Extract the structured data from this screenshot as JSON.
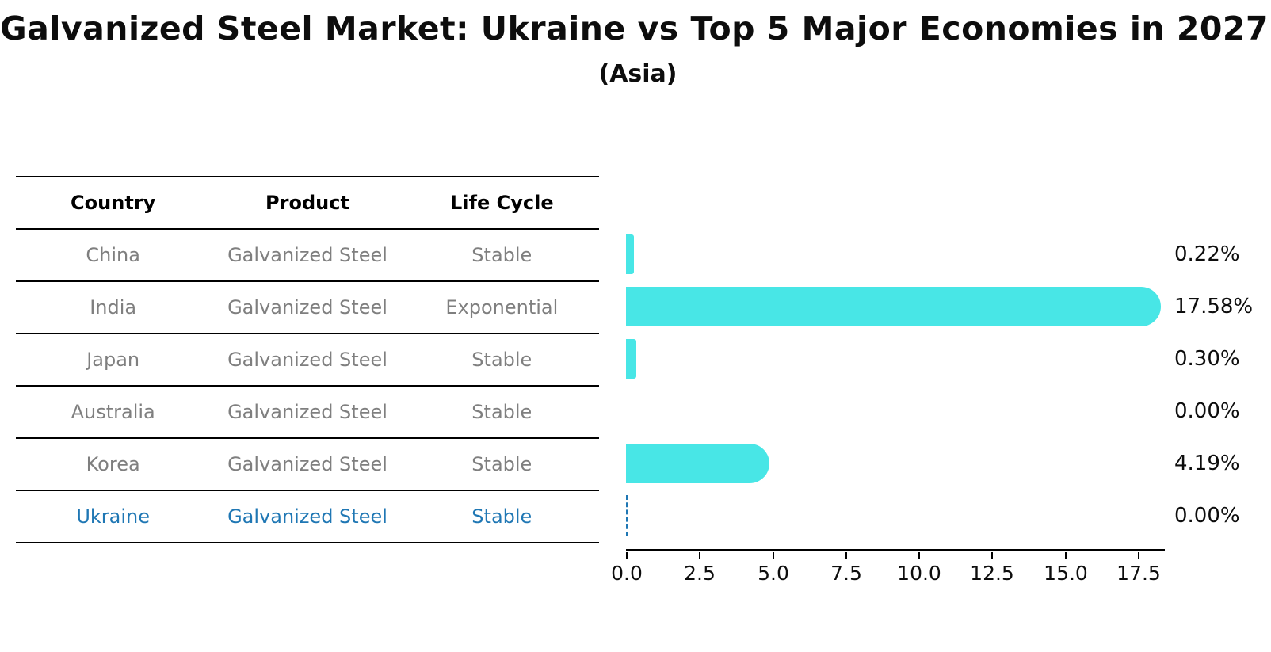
{
  "title": "Galvanized Steel Market: Ukraine vs Top 5 Major Economies in 2027",
  "subtitle": "(Asia)",
  "table": {
    "columns": [
      "Country",
      "Product",
      "Life Cycle"
    ],
    "rows": [
      {
        "country": "China",
        "product": "Galvanized Steel",
        "life_cycle": "Stable",
        "highlight": false
      },
      {
        "country": "India",
        "product": "Galvanized Steel",
        "life_cycle": "Exponential",
        "highlight": false
      },
      {
        "country": "Japan",
        "product": "Galvanized Steel",
        "life_cycle": "Stable",
        "highlight": false
      },
      {
        "country": "Australia",
        "product": "Galvanized Steel",
        "life_cycle": "Stable",
        "highlight": false
      },
      {
        "country": "Korea",
        "product": "Galvanized Steel",
        "life_cycle": "Stable",
        "highlight": false
      },
      {
        "country": "Ukraine",
        "product": "Galvanized Steel",
        "life_cycle": "Stable",
        "highlight": true
      }
    ]
  },
  "chart_data": {
    "type": "bar",
    "orientation": "horizontal",
    "categories": [
      "China",
      "India",
      "Japan",
      "Australia",
      "Korea",
      "Ukraine"
    ],
    "values": [
      0.22,
      17.58,
      0.3,
      0.0,
      4.19,
      0.0
    ],
    "value_labels": [
      "0.22%",
      "17.58%",
      "0.30%",
      "0.00%",
      "4.19%",
      "0.00%"
    ],
    "bar_styles": [
      "bar",
      "bar",
      "bar",
      "none",
      "bar",
      "dashed-zero-line"
    ],
    "x_ticks": [
      0.0,
      2.5,
      5.0,
      7.5,
      10.0,
      12.5,
      15.0,
      17.5
    ],
    "x_tick_labels": [
      "0.0",
      "2.5",
      "5.0",
      "7.5",
      "10.0",
      "12.5",
      "15.0",
      "17.5"
    ],
    "xlim": [
      0,
      18.4
    ],
    "grid": false,
    "legend": "none",
    "bar_color": "#48e6e6",
    "highlight_color": "#1f77b4"
  },
  "colors": {
    "background": "#ffffff",
    "table_line": "#000000",
    "row_text": "#7f7f7f",
    "header_text": "#000000",
    "bar": "#48e6e6",
    "ukraine_blue": "#1f77b4"
  }
}
